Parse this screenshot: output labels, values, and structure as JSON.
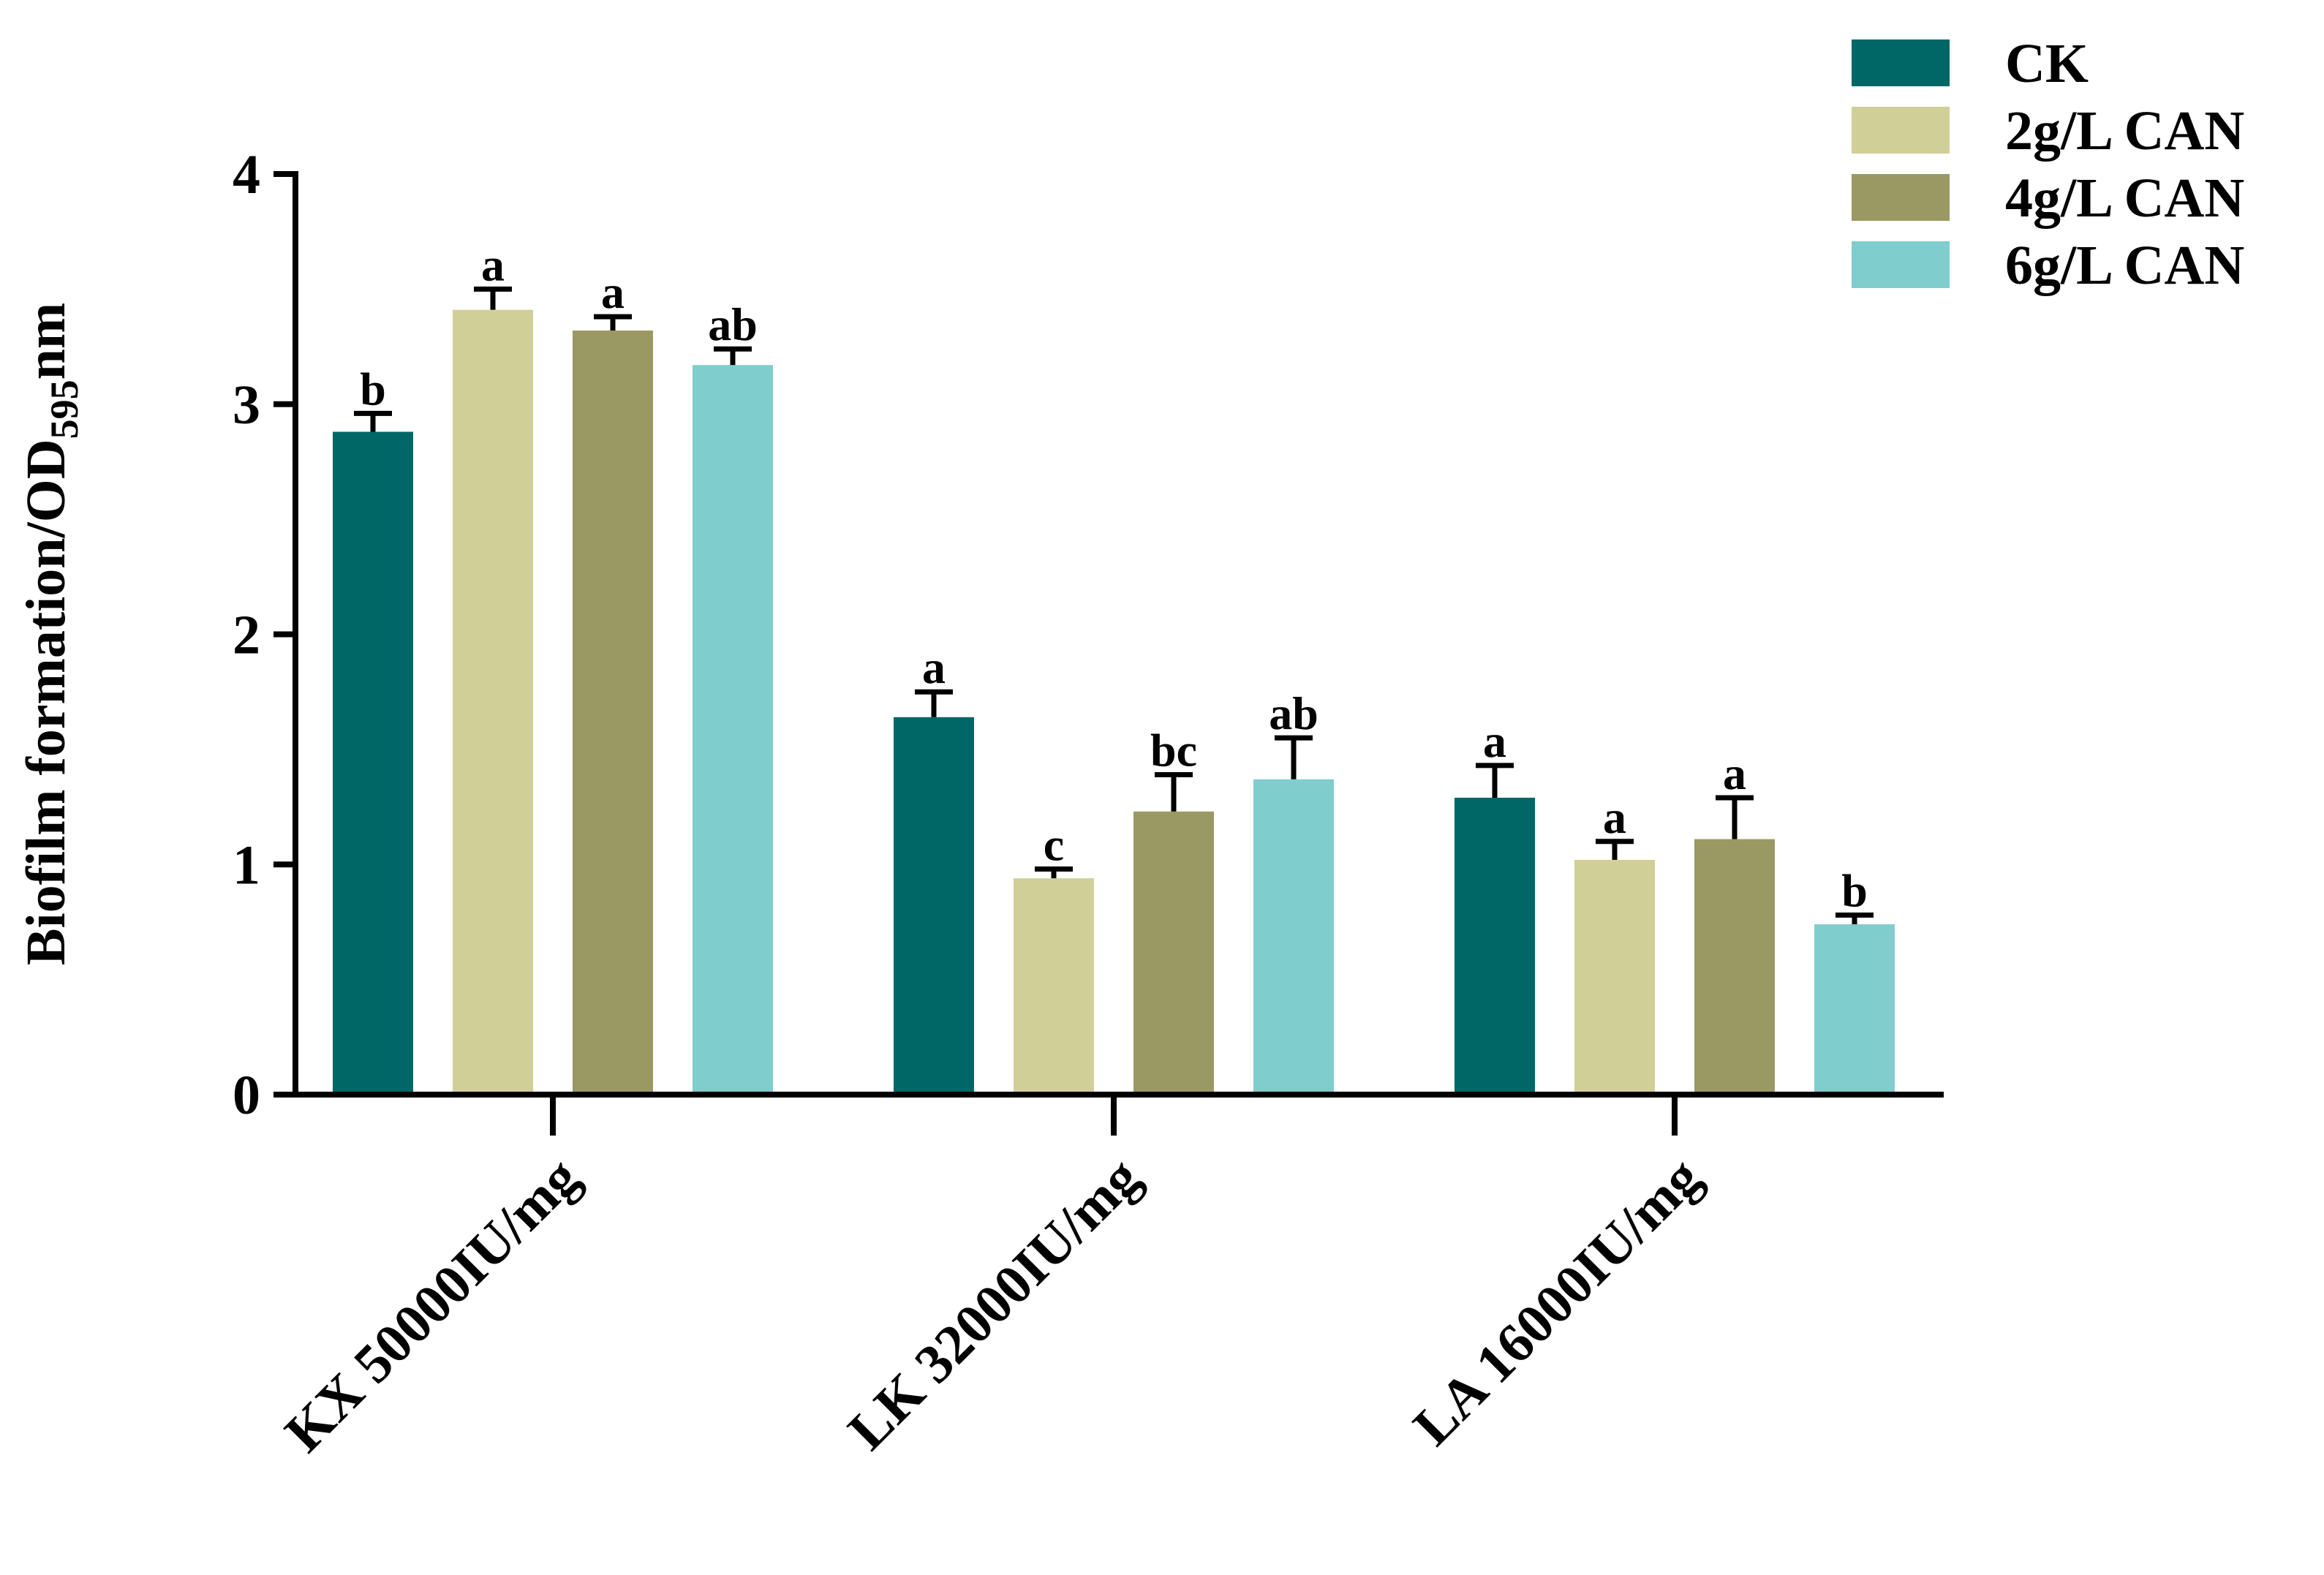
{
  "chart_data": {
    "type": "bar",
    "title": "",
    "xlabel": "",
    "ylabel": {
      "main": "Biofilm formation/OD",
      "subscript": "595",
      "suffix": "nm"
    },
    "ylim": [
      0,
      4
    ],
    "yticks": [
      "0",
      "1",
      "2",
      "3",
      "4"
    ],
    "grid": false,
    "legend_position": "top-right",
    "categories": [
      "KX 50000IU/mg",
      "LK 32000IU/mg",
      "LA 16000IU/mg"
    ],
    "series": [
      {
        "name": "CK",
        "color": "#006766",
        "values": [
          2.88,
          1.64,
          1.29
        ],
        "errors": [
          0.08,
          0.11,
          0.14
        ],
        "labels": [
          "b",
          "a",
          "a"
        ]
      },
      {
        "name": "2g/L CAN",
        "color": "#d1cf98",
        "values": [
          3.41,
          0.94,
          1.02
        ],
        "errors": [
          0.09,
          0.04,
          0.08
        ],
        "labels": [
          "a",
          "c",
          "a"
        ]
      },
      {
        "name": "4g/L CAN",
        "color": "#9b9963",
        "values": [
          3.32,
          1.23,
          1.11
        ],
        "errors": [
          0.06,
          0.16,
          0.18
        ],
        "labels": [
          "a",
          "bc",
          "a"
        ]
      },
      {
        "name": "6g/L CAN",
        "color": "#80cdcd",
        "values": [
          3.17,
          1.37,
          0.74
        ],
        "errors": [
          0.07,
          0.18,
          0.04
        ],
        "labels": [
          "ab",
          "ab",
          "b"
        ]
      }
    ]
  }
}
